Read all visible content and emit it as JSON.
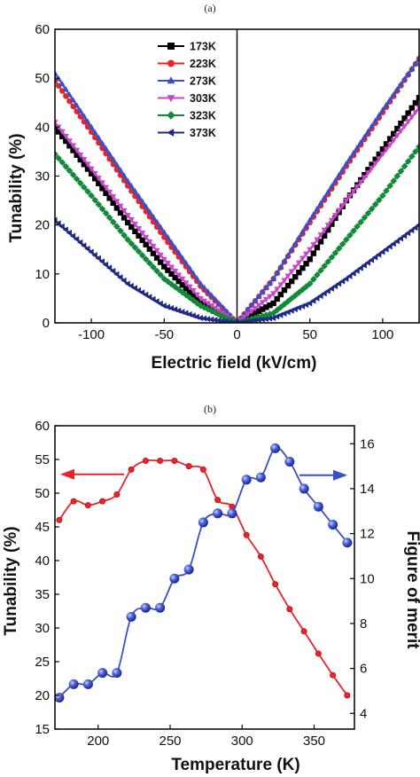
{
  "chart_data": [
    {
      "panel_label": "(a)",
      "type": "line",
      "xlabel": "Electric field (kV/cm)",
      "ylabel": "Tunability (%)",
      "xlim": [
        -125,
        125
      ],
      "ylim": [
        0,
        60
      ],
      "xticks": [
        -100,
        -50,
        0,
        50,
        100
      ],
      "yticks": [
        0,
        10,
        20,
        30,
        40,
        50,
        60
      ],
      "legend_position": "top-center",
      "series": [
        {
          "name": "173K",
          "marker": "square",
          "color": "#000000",
          "x": [
            -125,
            -100,
            -75,
            -50,
            -25,
            0,
            25,
            50,
            75,
            100,
            125
          ],
          "y": [
            40,
            30.5,
            20.5,
            11.5,
            4,
            0,
            4,
            13,
            25,
            35.5,
            46
          ]
        },
        {
          "name": "223K",
          "marker": "circle",
          "color": "#e8232a",
          "x": [
            -125,
            -100,
            -75,
            -50,
            -25,
            0,
            25,
            50,
            75,
            100,
            125
          ],
          "y": [
            49.5,
            39,
            28,
            17.5,
            7.5,
            0,
            9,
            20.5,
            32,
            43,
            54
          ]
        },
        {
          "name": "273K",
          "marker": "triangle-up",
          "color": "#3a4fc4",
          "x": [
            -125,
            -100,
            -75,
            -50,
            -25,
            0,
            25,
            50,
            75,
            100,
            125
          ],
          "y": [
            51,
            40,
            29,
            18.5,
            8,
            0,
            9,
            21,
            32.5,
            43.5,
            54
          ]
        },
        {
          "name": "303K",
          "marker": "triangle-down",
          "color": "#cc44cc",
          "x": [
            -125,
            -100,
            -75,
            -50,
            -25,
            0,
            25,
            50,
            75,
            100,
            125
          ],
          "y": [
            41,
            31.5,
            22,
            13,
            5,
            0,
            6,
            15,
            25,
            34.5,
            44
          ]
        },
        {
          "name": "323K",
          "marker": "diamond",
          "color": "#138a3a",
          "x": [
            -125,
            -100,
            -75,
            -50,
            -25,
            0,
            25,
            50,
            75,
            100,
            125
          ],
          "y": [
            34.5,
            26,
            17,
            9,
            3.5,
            0,
            2,
            8,
            17,
            26,
            36
          ]
        },
        {
          "name": "373K",
          "marker": "triangle-left",
          "color": "#1f2a85",
          "x": [
            -125,
            -100,
            -75,
            -50,
            -25,
            0,
            25,
            50,
            75,
            100,
            125
          ],
          "y": [
            21,
            14.5,
            8,
            3.5,
            1,
            0,
            1,
            4,
            9,
            14.5,
            20
          ]
        }
      ]
    },
    {
      "panel_label": "(b)",
      "type": "line",
      "xlabel": "Temperature (K)",
      "ylabel": "Tunability (%)",
      "y2label": "Figure of merit",
      "xlim": [
        170,
        378
      ],
      "ylim": [
        15,
        60
      ],
      "y2lim": [
        3.3,
        16.8
      ],
      "xticks": [
        200,
        250,
        300,
        350
      ],
      "yticks": [
        15,
        20,
        25,
        30,
        35,
        40,
        45,
        50,
        55,
        60
      ],
      "y2ticks": [
        4,
        6,
        8,
        10,
        12,
        14,
        16
      ],
      "series": [
        {
          "axis": "left",
          "color": "#e8232a",
          "marker": "circle-small",
          "x": [
            173,
            183,
            193,
            203,
            213,
            223,
            233,
            243,
            253,
            263,
            273,
            283,
            293,
            303,
            313,
            323,
            333,
            343,
            353,
            363,
            373
          ],
          "y": [
            46,
            48.8,
            48.2,
            48.8,
            49.8,
            53.5,
            54.8,
            54.8,
            54.8,
            54,
            53.5,
            49,
            48,
            43.8,
            40.6,
            36.5,
            32.8,
            29.5,
            26.2,
            23,
            20
          ]
        },
        {
          "axis": "right",
          "color": "#3a4fc4",
          "marker": "sphere",
          "x": [
            173,
            183,
            193,
            203,
            213,
            223,
            233,
            243,
            253,
            263,
            273,
            283,
            293,
            303,
            313,
            323,
            333,
            343,
            353,
            363,
            373
          ],
          "y": [
            4.7,
            5.3,
            5.3,
            5.8,
            5.8,
            8.3,
            8.7,
            8.7,
            10.0,
            10.4,
            12.5,
            12.9,
            12.9,
            14.4,
            14.5,
            15.8,
            15.2,
            14.0,
            13.2,
            12.4,
            11.6
          ]
        }
      ]
    }
  ]
}
